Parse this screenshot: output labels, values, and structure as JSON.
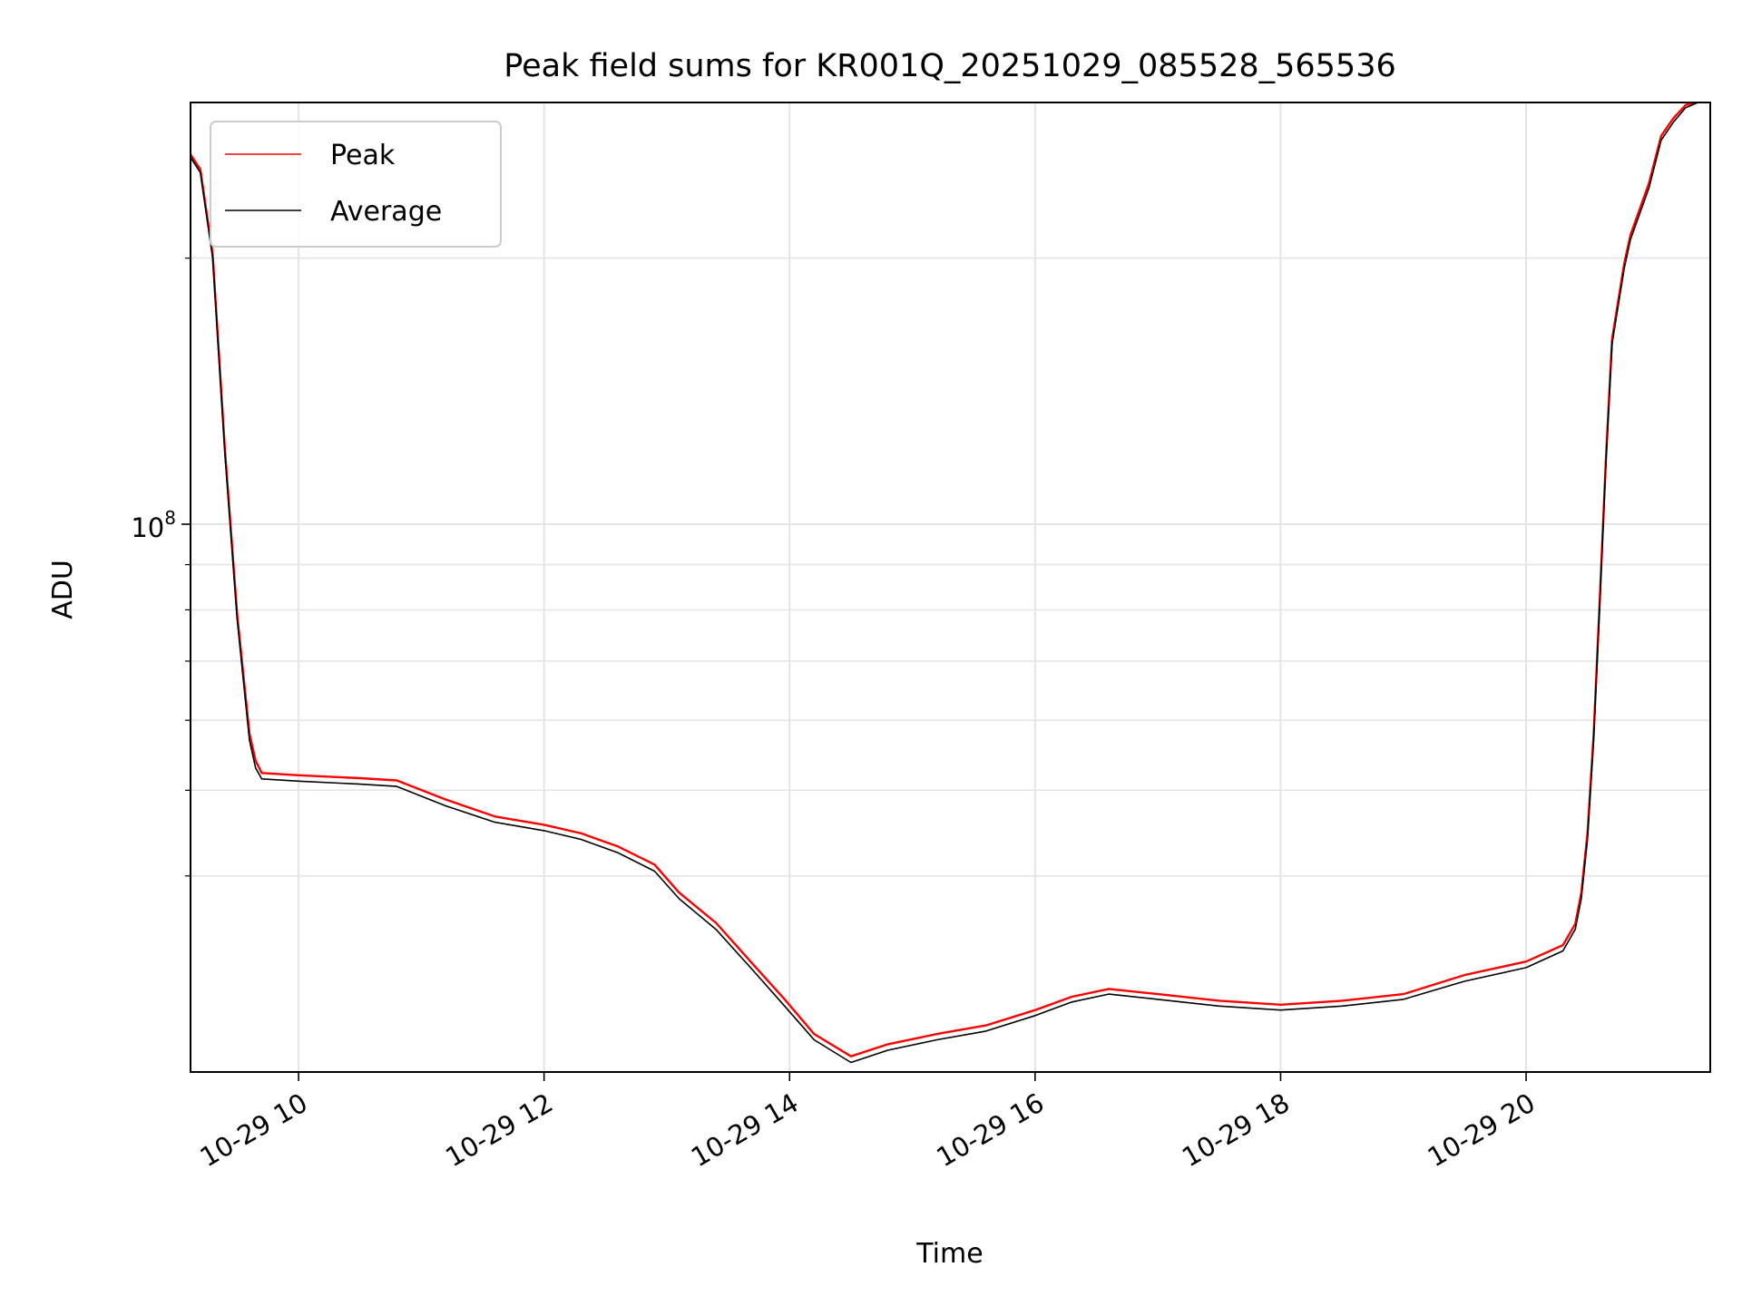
{
  "chart_data": {
    "type": "line",
    "title": "Peak field sums for KR001Q_20251029_085528_565536",
    "xlabel": "Time",
    "ylabel": "ADU",
    "yscale": "log",
    "xlim_hours": [
      9.12,
      21.5
    ],
    "ylim": [
      24000000,
      300000000
    ],
    "x_ticks": [
      {
        "hour": 10,
        "label": "10-29 10"
      },
      {
        "hour": 12,
        "label": "10-29 12"
      },
      {
        "hour": 14,
        "label": "10-29 14"
      },
      {
        "hour": 16,
        "label": "10-29 16"
      },
      {
        "hour": 18,
        "label": "10-29 18"
      },
      {
        "hour": 20,
        "label": "10-29 20"
      }
    ],
    "y_ticks": [
      {
        "value": 100000000,
        "base": "10",
        "exp": "8"
      }
    ],
    "y_minor_ticks": [
      40000000,
      50000000,
      60000000,
      70000000,
      80000000,
      90000000,
      200000000
    ],
    "grid": true,
    "legend": {
      "position": "top-left",
      "entries": [
        "Peak",
        "Average"
      ]
    },
    "series": [
      {
        "name": "Average",
        "color": "#000000",
        "x": [
          9.12,
          9.2,
          9.3,
          9.4,
          9.5,
          9.6,
          9.65,
          9.7,
          10.0,
          10.5,
          10.8,
          11.2,
          11.6,
          12.0,
          12.3,
          12.6,
          12.9,
          13.1,
          13.4,
          13.7,
          13.95,
          14.2,
          14.5,
          14.8,
          15.2,
          15.6,
          16.0,
          16.3,
          16.6,
          17.0,
          17.5,
          18.0,
          18.5,
          19.0,
          19.5,
          20.0,
          20.3,
          20.4,
          20.45,
          20.5,
          20.55,
          20.6,
          20.65,
          20.7,
          20.8,
          20.85,
          21.0,
          21.1,
          21.2,
          21.3,
          21.4,
          21.5
        ],
        "values": [
          260000000,
          250000000,
          200000000,
          120000000,
          78000000,
          57000000,
          53000000,
          51500000,
          51200000,
          50800000,
          50500000,
          48000000,
          46000000,
          45000000,
          44000000,
          42500000,
          40500000,
          37700000,
          34800000,
          31300000,
          28600000,
          26100000,
          24600000,
          25400000,
          26100000,
          26700000,
          27800000,
          28800000,
          29400000,
          29000000,
          28500000,
          28200000,
          28500000,
          29000000,
          30400000,
          31500000,
          32900000,
          34800000,
          37700000,
          44000000,
          57000000,
          81000000,
          117000000,
          160000000,
          195000000,
          210000000,
          240000000,
          272000000,
          285000000,
          296000000,
          300000000,
          300000000
        ]
      },
      {
        "name": "Peak",
        "color": "#ff0000",
        "x": [
          9.12,
          9.2,
          9.3,
          9.4,
          9.5,
          9.6,
          9.65,
          9.7,
          10.0,
          10.5,
          10.8,
          11.2,
          11.6,
          12.0,
          12.3,
          12.6,
          12.9,
          13.1,
          13.4,
          13.7,
          13.95,
          14.2,
          14.5,
          14.8,
          15.2,
          15.6,
          16.0,
          16.3,
          16.6,
          17.0,
          17.5,
          18.0,
          18.5,
          19.0,
          19.5,
          20.0,
          20.3,
          20.4,
          20.45,
          20.5,
          20.55,
          20.6,
          20.65,
          20.7,
          20.8,
          20.85,
          21.0,
          21.1,
          21.2,
          21.3,
          21.4,
          21.5
        ],
        "values": [
          262000000,
          252000000,
          202000000,
          121500000,
          79000000,
          58000000,
          54000000,
          52300000,
          52000000,
          51600000,
          51300000,
          48800000,
          46700000,
          45700000,
          44700000,
          43200000,
          41200000,
          38300000,
          35400000,
          31800000,
          29100000,
          26500000,
          25000000,
          25800000,
          26500000,
          27100000,
          28200000,
          29200000,
          29800000,
          29400000,
          28900000,
          28600000,
          28900000,
          29400000,
          30900000,
          32000000,
          33400000,
          35300000,
          38300000,
          44700000,
          57900000,
          82000000,
          118500000,
          162000000,
          197500000,
          212500000,
          243000000,
          275000000,
          288000000,
          298000000,
          301000000,
          301000000
        ]
      }
    ]
  }
}
